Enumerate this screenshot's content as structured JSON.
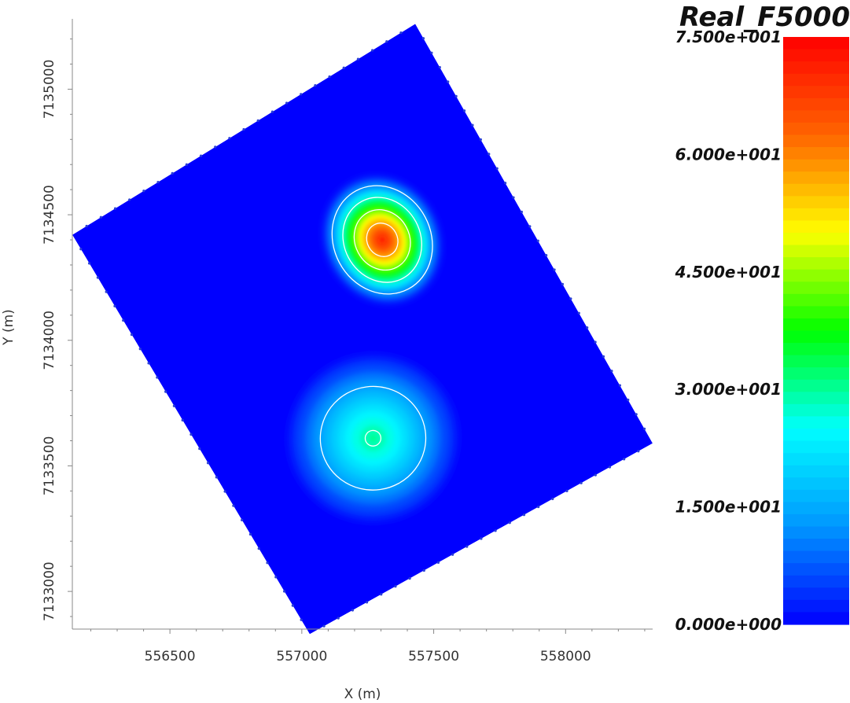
{
  "chart_data": {
    "type": "heatmap",
    "title": "Real_F5000",
    "xlabel": "X (m)",
    "ylabel": "Y (m)",
    "xlim": [
      556130,
      558330
    ],
    "ylim": [
      7132850,
      7135280
    ],
    "x_ticks": [
      "556500",
      "557000",
      "557500",
      "558000"
    ],
    "y_ticks": [
      "7135000",
      "7134500",
      "7134000",
      "7133500",
      "7133000"
    ],
    "colorbar": {
      "min": 0,
      "max": 75,
      "labels": [
        "7.500e+001",
        "6.000e+001",
        "4.500e+001",
        "3.000e+001",
        "1.500e+001",
        "0.000e+000"
      ],
      "colors": [
        "#0000ff",
        "#0096ff",
        "#00ffff",
        "#00ff00",
        "#ffff00",
        "#ff6400",
        "#ff0000"
      ]
    },
    "background_value": 0,
    "domain_corners": [
      {
        "x": 556130,
        "y": 7134420
      },
      {
        "x": 557430,
        "y": 7135260
      },
      {
        "x": 558330,
        "y": 7133590
      },
      {
        "x": 557030,
        "y": 7132830
      }
    ],
    "anomalies": [
      {
        "x": 557305,
        "y": 7134400,
        "peak": 72
      },
      {
        "x": 557270,
        "y": 7133610,
        "peak": 31
      }
    ],
    "contour_levels": [
      15,
      30,
      45,
      60
    ]
  }
}
